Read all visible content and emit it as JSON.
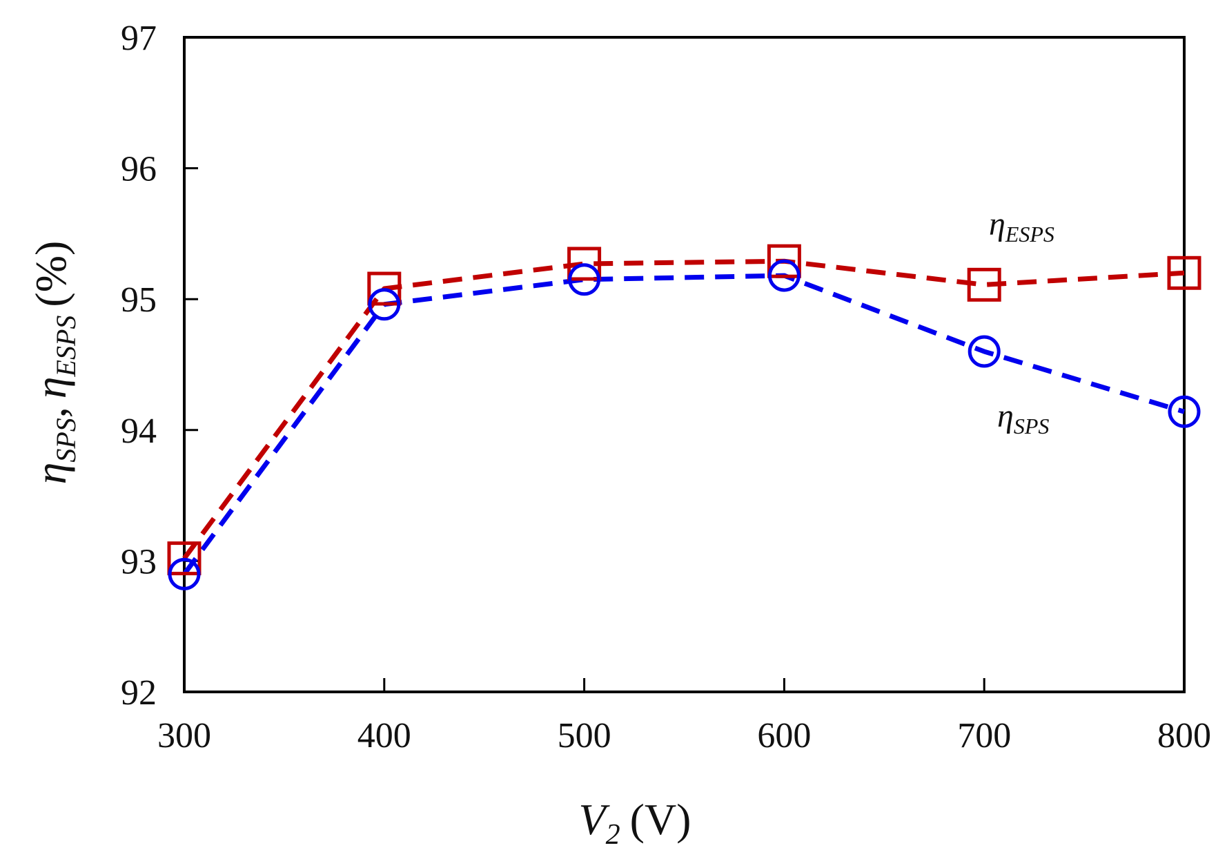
{
  "chart_data": {
    "type": "line",
    "x": [
      300,
      400,
      500,
      600,
      700,
      800
    ],
    "xlim": [
      300,
      800
    ],
    "ylim": [
      92,
      97
    ],
    "xticks": [
      "300",
      "400",
      "500",
      "600",
      "700",
      "800"
    ],
    "yticks": [
      "92",
      "93",
      "94",
      "95",
      "96",
      "97"
    ],
    "xlabel": {
      "main": "V",
      "sub": "2",
      "unit": "(V)"
    },
    "ylabel": {
      "eta1": "η",
      "sub1": "SPS",
      "sep": ",",
      "eta2": "η",
      "sub2": "ESPS",
      "unit": "(%)"
    },
    "grid": false,
    "legend": "none",
    "series": [
      {
        "name": "ηESPS",
        "label_main": "η",
        "label_sub": "ESPS",
        "values": [
          93.02,
          95.08,
          95.27,
          95.29,
          95.11,
          95.2
        ],
        "color": "#c00000",
        "marker": "square",
        "line": "dashed"
      },
      {
        "name": "ηSPS",
        "label_main": "η",
        "label_sub": "SPS",
        "values": [
          92.9,
          94.96,
          95.15,
          95.18,
          94.6,
          94.14
        ],
        "color": "#0000ee",
        "marker": "circle",
        "line": "dashed"
      }
    ]
  }
}
